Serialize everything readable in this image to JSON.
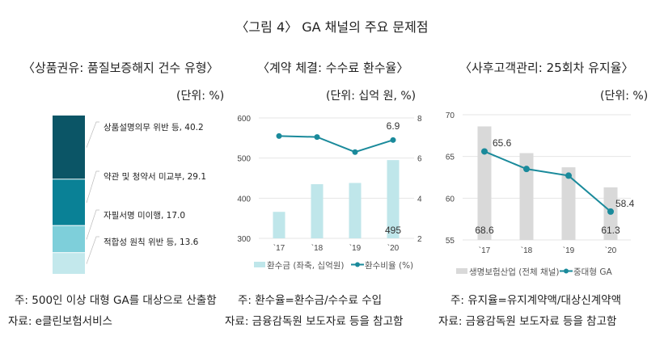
{
  "title": "〈그림 4〉 GA 채널의 주요 문제점",
  "panels": [
    {
      "subtitle": "〈상품권유: 품질보증해지 건수 유형〉",
      "unit": "(단위: %)"
    },
    {
      "subtitle": "〈계약 체결: 수수료 환수율〉",
      "unit": "(단위: 십억 원, %)"
    },
    {
      "subtitle": "〈사후고객관리: 25회차 유지율〉",
      "unit": "(단위: %)"
    }
  ],
  "notes": {
    "left_note": "주: 500인 이상 대형 GA를 대상으로 산출함",
    "left_source": "자료: e클린보험서비스",
    "mid_note": "주: 환수율=환수금/수수료 수입",
    "mid_source": "자료: 금융감독원 보도자료 등을 참고함",
    "right_note": "주: 유지율=유지계약액/대상신계약액",
    "right_source": "자료: 금융감독원 보도자료 등을 참고함"
  },
  "chart_data": [
    {
      "type": "bar",
      "stacked": true,
      "categories": [
        "상품설명의무 위반 등",
        "약관 및 청약서 미교부",
        "자필서명 미이행",
        "적합성 원칙 위반 등"
      ],
      "values": [
        40.2,
        29.1,
        17.0,
        13.6
      ],
      "labels": [
        "상품설명의무 위반 등, 40.2",
        "약관 및 청약서 미교부, 29.1",
        "자필서명 미이행, 17.0",
        "적합성 원칙 위반 등, 13.6"
      ],
      "colors": [
        "#0b5566",
        "#0a8196",
        "#7ecfda",
        "#c3e8ec"
      ]
    },
    {
      "type": "bar+line",
      "categories": [
        "`17",
        "`18",
        "`19",
        "`20"
      ],
      "series": [
        {
          "name": "환수금 (좌축, 십억원)",
          "type": "bar",
          "axis": "left",
          "values": [
            366,
            435,
            438,
            495
          ],
          "color": "#bfe6ea"
        },
        {
          "name": "환수비율 (%)",
          "type": "line",
          "axis": "right",
          "values": [
            7.1,
            7.05,
            6.3,
            6.9
          ],
          "color": "#1a8a9b"
        }
      ],
      "data_labels": {
        "bar_last": "495",
        "line_last": "6.9"
      },
      "ylim_left": [
        300,
        600
      ],
      "yticks_left": [
        "300",
        "400",
        "500",
        "600"
      ],
      "ylim_right": [
        2,
        8
      ],
      "yticks_right": [
        "2",
        "4",
        "6",
        "8"
      ],
      "grid": true,
      "legend": "bottom"
    },
    {
      "type": "bar+line",
      "categories": [
        "`17",
        "`18",
        "`19",
        "`20"
      ],
      "series": [
        {
          "name": "생명보험산업 (전체 채널)",
          "type": "bar",
          "values": [
            68.6,
            65.4,
            63.7,
            61.3
          ],
          "color": "#d9d9d9"
        },
        {
          "name": "중대형 GA",
          "type": "line",
          "values": [
            65.6,
            63.5,
            62.7,
            58.4
          ],
          "color": "#1a8a9b"
        }
      ],
      "data_labels": {
        "bar_first": "68.6",
        "bar_last": "61.3",
        "line_first": "65.6",
        "line_last": "58.4"
      },
      "ylim": [
        55,
        70
      ],
      "yticks": [
        "55",
        "60",
        "65",
        "70"
      ],
      "grid": true,
      "legend": "bottom"
    }
  ]
}
